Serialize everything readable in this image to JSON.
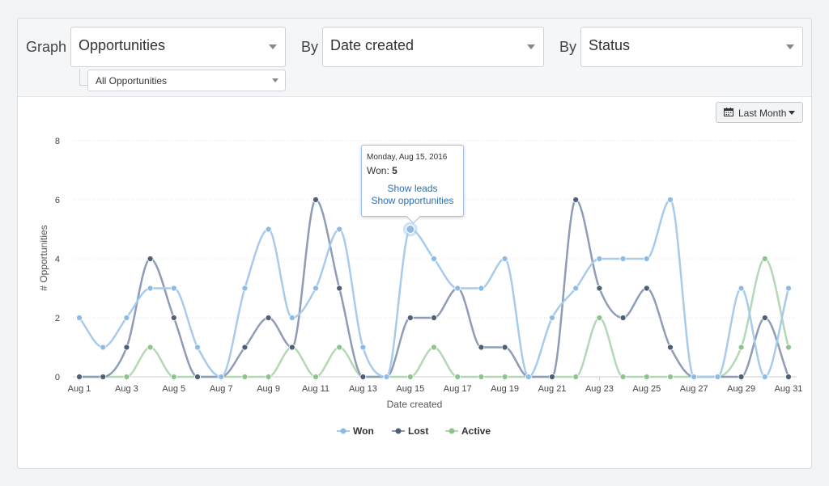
{
  "filters": {
    "graph_label": "Graph",
    "graph_value": "Opportunities",
    "sub_value": "All Opportunities",
    "by1_label": "By",
    "by1_value": "Date created",
    "by2_label": "By",
    "by2_value": "Status"
  },
  "range_button": {
    "label": "Last Month",
    "icon": "calendar-icon"
  },
  "tooltip": {
    "date": "Monday, Aug 15, 2016",
    "series_label": "Won:",
    "series_value": "5",
    "link1": "Show leads",
    "link2": "Show opportunities"
  },
  "chart_data": {
    "type": "line",
    "xlabel": "Date created",
    "ylabel": "# Opportunities",
    "ylim": [
      0,
      8
    ],
    "yticks": [
      0,
      2,
      4,
      6,
      8
    ],
    "grid": true,
    "legend_position": "bottom",
    "x": [
      "Aug 1",
      "Aug 2",
      "Aug 3",
      "Aug 4",
      "Aug 5",
      "Aug 6",
      "Aug 7",
      "Aug 8",
      "Aug 9",
      "Aug 10",
      "Aug 11",
      "Aug 12",
      "Aug 13",
      "Aug 14",
      "Aug 15",
      "Aug 16",
      "Aug 17",
      "Aug 18",
      "Aug 19",
      "Aug 20",
      "Aug 21",
      "Aug 22",
      "Aug 23",
      "Aug 24",
      "Aug 25",
      "Aug 26",
      "Aug 27",
      "Aug 28",
      "Aug 29",
      "Aug 30",
      "Aug 31"
    ],
    "xtick_labels": [
      "Aug 1",
      "Aug 3",
      "Aug 5",
      "Aug 7",
      "Aug 9",
      "Aug 11",
      "Aug 13",
      "Aug 15",
      "Aug 17",
      "Aug 19",
      "Aug 21",
      "Aug 23",
      "Aug 25",
      "Aug 27",
      "Aug 29",
      "Aug 31"
    ],
    "series": [
      {
        "name": "Won",
        "color": "#a8cbec",
        "marker": "#8dbbe6",
        "values": [
          2,
          1,
          2,
          3,
          3,
          1,
          0,
          3,
          5,
          2,
          3,
          5,
          1,
          0,
          5,
          4,
          3,
          3,
          4,
          0,
          2,
          3,
          4,
          4,
          4,
          6,
          0,
          0,
          3,
          0,
          3
        ]
      },
      {
        "name": "Lost",
        "color": "#8e9db5",
        "marker": "#4f5f78",
        "values": [
          0,
          0,
          1,
          4,
          2,
          0,
          0,
          1,
          2,
          1,
          6,
          3,
          0,
          0,
          2,
          2,
          3,
          1,
          1,
          0,
          0,
          6,
          3,
          2,
          3,
          1,
          0,
          0,
          0,
          2,
          0
        ]
      },
      {
        "name": "Active",
        "color": "#b4d8b4",
        "marker": "#8cc48c",
        "values": [
          0,
          0,
          0,
          1,
          0,
          0,
          0,
          0,
          0,
          1,
          0,
          1,
          0,
          0,
          0,
          1,
          0,
          0,
          0,
          0,
          0,
          0,
          2,
          0,
          0,
          0,
          0,
          0,
          1,
          4,
          1
        ]
      }
    ]
  }
}
